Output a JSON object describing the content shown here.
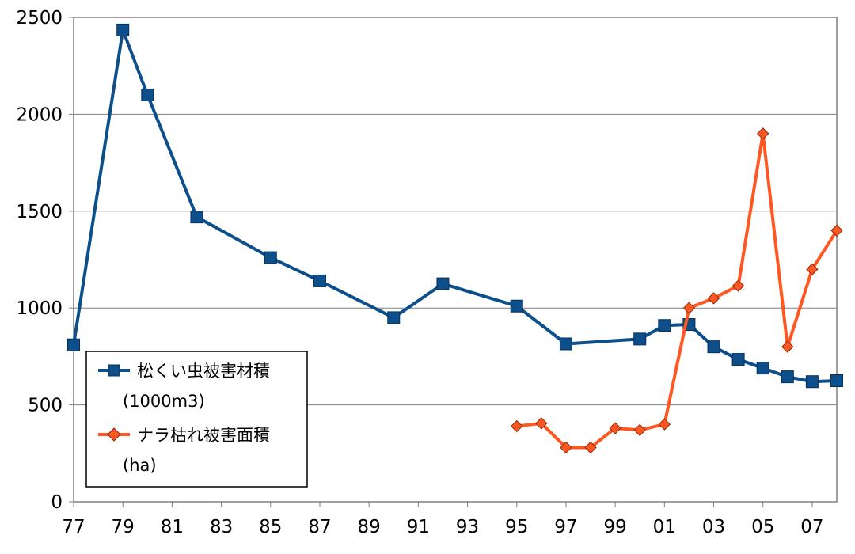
{
  "chart_data": {
    "type": "line",
    "title": "",
    "xlabel": "",
    "ylabel": "",
    "xlim": [
      1977,
      2008
    ],
    "ylim": [
      0,
      2500
    ],
    "x_tick_labels": [
      "77",
      "79",
      "81",
      "83",
      "85",
      "87",
      "89",
      "91",
      "93",
      "95",
      "97",
      "99",
      "01",
      "03",
      "05",
      "07"
    ],
    "y_tick_labels": [
      "0",
      "500",
      "1000",
      "1500",
      "2000",
      "2500"
    ],
    "grid": true,
    "legend_position": "bottom-left",
    "series": [
      {
        "name": "松くい虫被害材積",
        "unit": "(1000m3)",
        "color": "#0d4f8b",
        "marker": "square",
        "points": [
          {
            "x": 1977,
            "y": 810
          },
          {
            "x": 1979,
            "y": 2435
          },
          {
            "x": 1980,
            "y": 2100
          },
          {
            "x": 1982,
            "y": 1470
          },
          {
            "x": 1985,
            "y": 1260
          },
          {
            "x": 1987,
            "y": 1140
          },
          {
            "x": 1990,
            "y": 950
          },
          {
            "x": 1992,
            "y": 1125
          },
          {
            "x": 1995,
            "y": 1010
          },
          {
            "x": 1997,
            "y": 815
          },
          {
            "x": 2000,
            "y": 840
          },
          {
            "x": 2001,
            "y": 910
          },
          {
            "x": 2002,
            "y": 915
          },
          {
            "x": 2003,
            "y": 800
          },
          {
            "x": 2004,
            "y": 735
          },
          {
            "x": 2005,
            "y": 690
          },
          {
            "x": 2006,
            "y": 645
          },
          {
            "x": 2007,
            "y": 620
          },
          {
            "x": 2008,
            "y": 625
          }
        ]
      },
      {
        "name": "ナラ枯れ被害面積",
        "unit": "(ha)",
        "color": "#ff5722",
        "marker": "diamond",
        "points": [
          {
            "x": 1995,
            "y": 390
          },
          {
            "x": 1996,
            "y": 405
          },
          {
            "x": 1997,
            "y": 280
          },
          {
            "x": 1998,
            "y": 280
          },
          {
            "x": 1999,
            "y": 380
          },
          {
            "x": 2000,
            "y": 370
          },
          {
            "x": 2001,
            "y": 400
          },
          {
            "x": 2002,
            "y": 1000
          },
          {
            "x": 2003,
            "y": 1050
          },
          {
            "x": 2004,
            "y": 1115
          },
          {
            "x": 2005,
            "y": 1900
          },
          {
            "x": 2006,
            "y": 800
          },
          {
            "x": 2007,
            "y": 1200
          },
          {
            "x": 2008,
            "y": 1400
          }
        ]
      }
    ]
  }
}
